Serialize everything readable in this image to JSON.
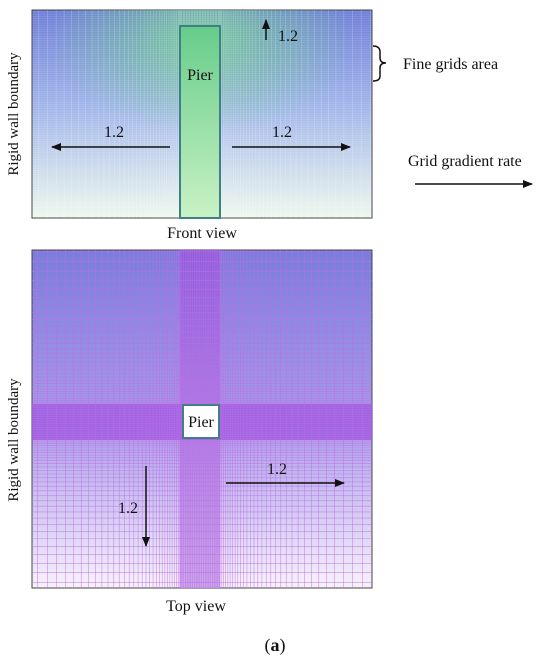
{
  "front_view": {
    "caption": "Front view",
    "side_label": "Rigid wall boundary",
    "pier_label": "Pier",
    "rate_left": "1.2",
    "rate_right": "1.2",
    "rate_up": "1.2"
  },
  "top_view": {
    "caption": "Top view",
    "side_label": "Rigid wall boundary",
    "pier_label": "Pier",
    "rate_down": "1.2",
    "rate_right": "1.2"
  },
  "legend": {
    "fine_grids": "Fine grids  area",
    "gradient": "Grid gradient rate"
  },
  "panel_label": {
    "open": "(",
    "letter": "a",
    "close": ")"
  },
  "colors": {
    "front_top": "#6f7fd8",
    "front_bottom": "#e9f6ea",
    "pier_fill": "#7fd98a",
    "top_grid_top": "#7d78dc",
    "top_grid_bottom": "#f3ecfb",
    "band": "#9a55e0",
    "pier_border": "#3f7f86"
  }
}
